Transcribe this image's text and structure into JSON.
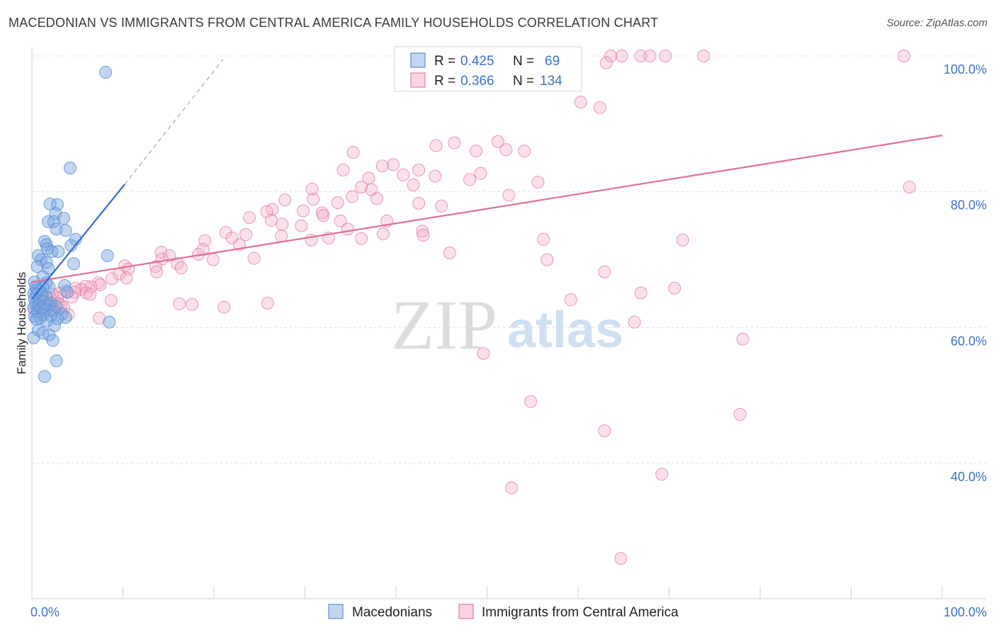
{
  "title": "MACEDONIAN VS IMMIGRANTS FROM CENTRAL AMERICA FAMILY HOUSEHOLDS CORRELATION CHART",
  "source": "Source: ZipAtlas.com",
  "watermark": {
    "zip": "ZIP",
    "atlas": "atlas"
  },
  "colors": {
    "blue": "#5b8fd6",
    "blue_fill": "rgba(120,165,225,0.45)",
    "blue_line": "#2f6fd0",
    "pink": "#e07aa0",
    "pink_fill": "rgba(245,170,195,0.35)",
    "pink_line": "#e0709a",
    "grid": "#dcdcdc",
    "tick_text": "#3b73c9"
  },
  "legend": {
    "row1": {
      "r_label": "R = ",
      "r_value": "0.425",
      "n_label": "N = ",
      "n_value": "69"
    },
    "row2": {
      "r_label": "R = ",
      "r_value": "0.366",
      "n_label": "N = ",
      "n_value": "134"
    }
  },
  "bottom_legend": {
    "series1": "Macedonians",
    "series2": "Immigrants from Central America"
  },
  "chart_data": {
    "type": "scatter",
    "title": "MACEDONIAN VS IMMIGRANTS FROM CENTRAL AMERICA FAMILY HOUSEHOLDS CORRELATION CHART",
    "xlabel": "",
    "ylabel": "Family Households",
    "xlim": [
      0,
      100
    ],
    "ylim": [
      20,
      102
    ],
    "x_tick_labels": {
      "left": "0.0%",
      "right": "100.0%"
    },
    "y_ticks": [
      {
        "value": 40,
        "label": "40.0%"
      },
      {
        "value": 60,
        "label": "60.0%"
      },
      {
        "value": 80,
        "label": "80.0%"
      },
      {
        "value": 100,
        "label": "100.0%"
      }
    ],
    "series": [
      {
        "name": "Macedonians",
        "color": "#5b8fd6",
        "trend": {
          "x0": 0.0,
          "y0": 64.2,
          "x1": 10.2,
          "y1": 81.1,
          "dash_to_x": 21.0,
          "dash_to_y": 99.5
        },
        "points": [
          [
            8.1,
            97.6
          ],
          [
            4.2,
            83.5
          ],
          [
            2.0,
            78.2
          ],
          [
            2.8,
            78.1
          ],
          [
            2.6,
            76.8
          ],
          [
            3.5,
            76.1
          ],
          [
            1.8,
            75.6
          ],
          [
            2.4,
            75.6
          ],
          [
            2.7,
            74.5
          ],
          [
            3.7,
            74.3
          ],
          [
            4.8,
            73.0
          ],
          [
            1.4,
            72.7
          ],
          [
            1.6,
            72.2
          ],
          [
            4.3,
            72.1
          ],
          [
            1.7,
            71.6
          ],
          [
            2.2,
            71.2
          ],
          [
            2.9,
            71.2
          ],
          [
            0.7,
            70.6
          ],
          [
            8.3,
            70.6
          ],
          [
            1.0,
            70.0
          ],
          [
            1.6,
            69.6
          ],
          [
            4.6,
            69.4
          ],
          [
            0.6,
            69.0
          ],
          [
            1.8,
            68.7
          ],
          [
            1.2,
            67.5
          ],
          [
            0.3,
            66.7
          ],
          [
            1.6,
            66.6
          ],
          [
            3.6,
            66.2
          ],
          [
            0.4,
            66.0
          ],
          [
            1.9,
            66.0
          ],
          [
            1.2,
            65.9
          ],
          [
            0.6,
            65.6
          ],
          [
            0.9,
            65.4
          ],
          [
            3.9,
            65.2
          ],
          [
            0.2,
            65.0
          ],
          [
            0.5,
            64.9
          ],
          [
            1.1,
            64.8
          ],
          [
            1.6,
            64.5
          ],
          [
            0.3,
            64.2
          ],
          [
            0.8,
            64.0
          ],
          [
            1.3,
            63.8
          ],
          [
            2.1,
            63.6
          ],
          [
            0.4,
            63.5
          ],
          [
            0.7,
            63.3
          ],
          [
            1.9,
            63.2
          ],
          [
            2.7,
            63.1
          ],
          [
            0.2,
            62.9
          ],
          [
            1.0,
            62.8
          ],
          [
            1.5,
            62.6
          ],
          [
            2.4,
            62.4
          ],
          [
            0.6,
            62.3
          ],
          [
            3.3,
            62.0
          ],
          [
            1.2,
            61.9
          ],
          [
            2.1,
            61.7
          ],
          [
            0.3,
            61.6
          ],
          [
            0.9,
            61.4
          ],
          [
            3.7,
            61.5
          ],
          [
            2.8,
            61.3
          ],
          [
            0.5,
            61.2
          ],
          [
            1.7,
            61.0
          ],
          [
            8.5,
            60.8
          ],
          [
            2.5,
            60.3
          ],
          [
            0.7,
            59.6
          ],
          [
            1.2,
            59.2
          ],
          [
            1.9,
            58.9
          ],
          [
            0.2,
            58.5
          ],
          [
            2.3,
            58.1
          ],
          [
            2.7,
            55.1
          ],
          [
            1.4,
            52.8
          ]
        ]
      },
      {
        "name": "Immigrants from Central America",
        "color": "#e07aa0",
        "trend": {
          "x0": 0.0,
          "y0": 66.7,
          "x1": 100.0,
          "y1": 88.3
        },
        "points": [
          [
            55.0,
            100
          ],
          [
            56.5,
            100
          ],
          [
            58.4,
            100
          ],
          [
            63.6,
            100
          ],
          [
            64.8,
            100
          ],
          [
            66.9,
            100
          ],
          [
            67.9,
            100
          ],
          [
            69.6,
            100
          ],
          [
            73.8,
            100
          ],
          [
            95.8,
            100
          ],
          [
            63.1,
            99.0
          ],
          [
            47.2,
            97.5
          ],
          [
            60.3,
            93.2
          ],
          [
            62.4,
            92.4
          ],
          [
            51.2,
            87.4
          ],
          [
            46.4,
            87.2
          ],
          [
            44.4,
            86.8
          ],
          [
            52.1,
            86.2
          ],
          [
            48.8,
            86.0
          ],
          [
            54.1,
            86.0
          ],
          [
            35.3,
            85.8
          ],
          [
            39.7,
            84.0
          ],
          [
            38.5,
            83.8
          ],
          [
            34.2,
            83.2
          ],
          [
            42.5,
            83.2
          ],
          [
            40.8,
            82.5
          ],
          [
            49.3,
            82.7
          ],
          [
            44.3,
            82.3
          ],
          [
            37.0,
            82.0
          ],
          [
            48.1,
            81.8
          ],
          [
            41.9,
            81.0
          ],
          [
            55.6,
            81.4
          ],
          [
            36.2,
            80.7
          ],
          [
            37.3,
            80.3
          ],
          [
            30.8,
            80.4
          ],
          [
            96.4,
            80.7
          ],
          [
            52.4,
            79.5
          ],
          [
            37.9,
            79.0
          ],
          [
            35.2,
            79.3
          ],
          [
            27.8,
            78.8
          ],
          [
            30.9,
            78.9
          ],
          [
            33.6,
            78.4
          ],
          [
            42.5,
            78.3
          ],
          [
            45.0,
            77.9
          ],
          [
            26.4,
            77.4
          ],
          [
            25.8,
            77.1
          ],
          [
            29.8,
            77.2
          ],
          [
            31.9,
            76.9
          ],
          [
            32.0,
            76.5
          ],
          [
            23.9,
            76.2
          ],
          [
            26.3,
            75.8
          ],
          [
            33.9,
            75.7
          ],
          [
            39.0,
            75.7
          ],
          [
            27.5,
            75.2
          ],
          [
            29.6,
            75.0
          ],
          [
            34.7,
            74.5
          ],
          [
            42.9,
            74.2
          ],
          [
            21.3,
            74.0
          ],
          [
            38.6,
            73.8
          ],
          [
            23.5,
            73.7
          ],
          [
            43.0,
            73.6
          ],
          [
            27.4,
            73.5
          ],
          [
            22.0,
            73.2
          ],
          [
            32.6,
            73.2
          ],
          [
            19.0,
            72.8
          ],
          [
            36.2,
            73.1
          ],
          [
            30.7,
            72.9
          ],
          [
            22.8,
            72.2
          ],
          [
            18.8,
            71.5
          ],
          [
            14.2,
            71.1
          ],
          [
            18.3,
            70.8
          ],
          [
            15.1,
            70.6
          ],
          [
            24.4,
            70.2
          ],
          [
            14.3,
            70.1
          ],
          [
            19.9,
            70.0
          ],
          [
            16.0,
            69.4
          ],
          [
            10.2,
            69.1
          ],
          [
            13.6,
            69.0
          ],
          [
            16.4,
            68.8
          ],
          [
            10.6,
            68.6
          ],
          [
            13.7,
            68.2
          ],
          [
            9.6,
            67.9
          ],
          [
            10.4,
            67.3
          ],
          [
            8.8,
            67.2
          ],
          [
            7.3,
            66.6
          ],
          [
            7.5,
            66.3
          ],
          [
            6.5,
            66.0
          ],
          [
            5.9,
            66.1
          ],
          [
            5.4,
            65.6
          ],
          [
            4.8,
            65.8
          ],
          [
            3.7,
            65.4
          ],
          [
            6.0,
            65.1
          ],
          [
            4.7,
            65.2
          ],
          [
            3.1,
            65.1
          ],
          [
            2.3,
            64.9
          ],
          [
            6.4,
            64.9
          ],
          [
            2.8,
            64.4
          ],
          [
            4.4,
            64.5
          ],
          [
            2.1,
            64.2
          ],
          [
            1.5,
            64.0
          ],
          [
            8.7,
            64.0
          ],
          [
            1.8,
            63.6
          ],
          [
            2.9,
            63.5
          ],
          [
            0.9,
            63.3
          ],
          [
            3.2,
            63.3
          ],
          [
            3.5,
            63.0
          ],
          [
            0.6,
            62.8
          ],
          [
            1.3,
            62.9
          ],
          [
            2.5,
            62.7
          ],
          [
            0.3,
            62.4
          ],
          [
            2.0,
            62.5
          ],
          [
            4.0,
            61.9
          ],
          [
            21.1,
            63.0
          ],
          [
            25.9,
            63.6
          ],
          [
            17.6,
            63.4
          ],
          [
            16.2,
            63.5
          ],
          [
            7.4,
            61.4
          ],
          [
            62.9,
            68.2
          ],
          [
            70.6,
            65.8
          ],
          [
            56.6,
            70.0
          ],
          [
            56.2,
            73.0
          ],
          [
            45.9,
            71.0
          ],
          [
            66.9,
            65.1
          ],
          [
            71.5,
            72.9
          ],
          [
            59.2,
            64.1
          ],
          [
            78.1,
            58.3
          ],
          [
            62.9,
            44.8
          ],
          [
            54.8,
            49.1
          ],
          [
            69.2,
            38.4
          ],
          [
            77.8,
            47.2
          ],
          [
            49.6,
            56.2
          ],
          [
            64.7,
            26.0
          ],
          [
            52.7,
            36.4
          ],
          [
            66.2,
            60.8
          ]
        ]
      }
    ]
  }
}
